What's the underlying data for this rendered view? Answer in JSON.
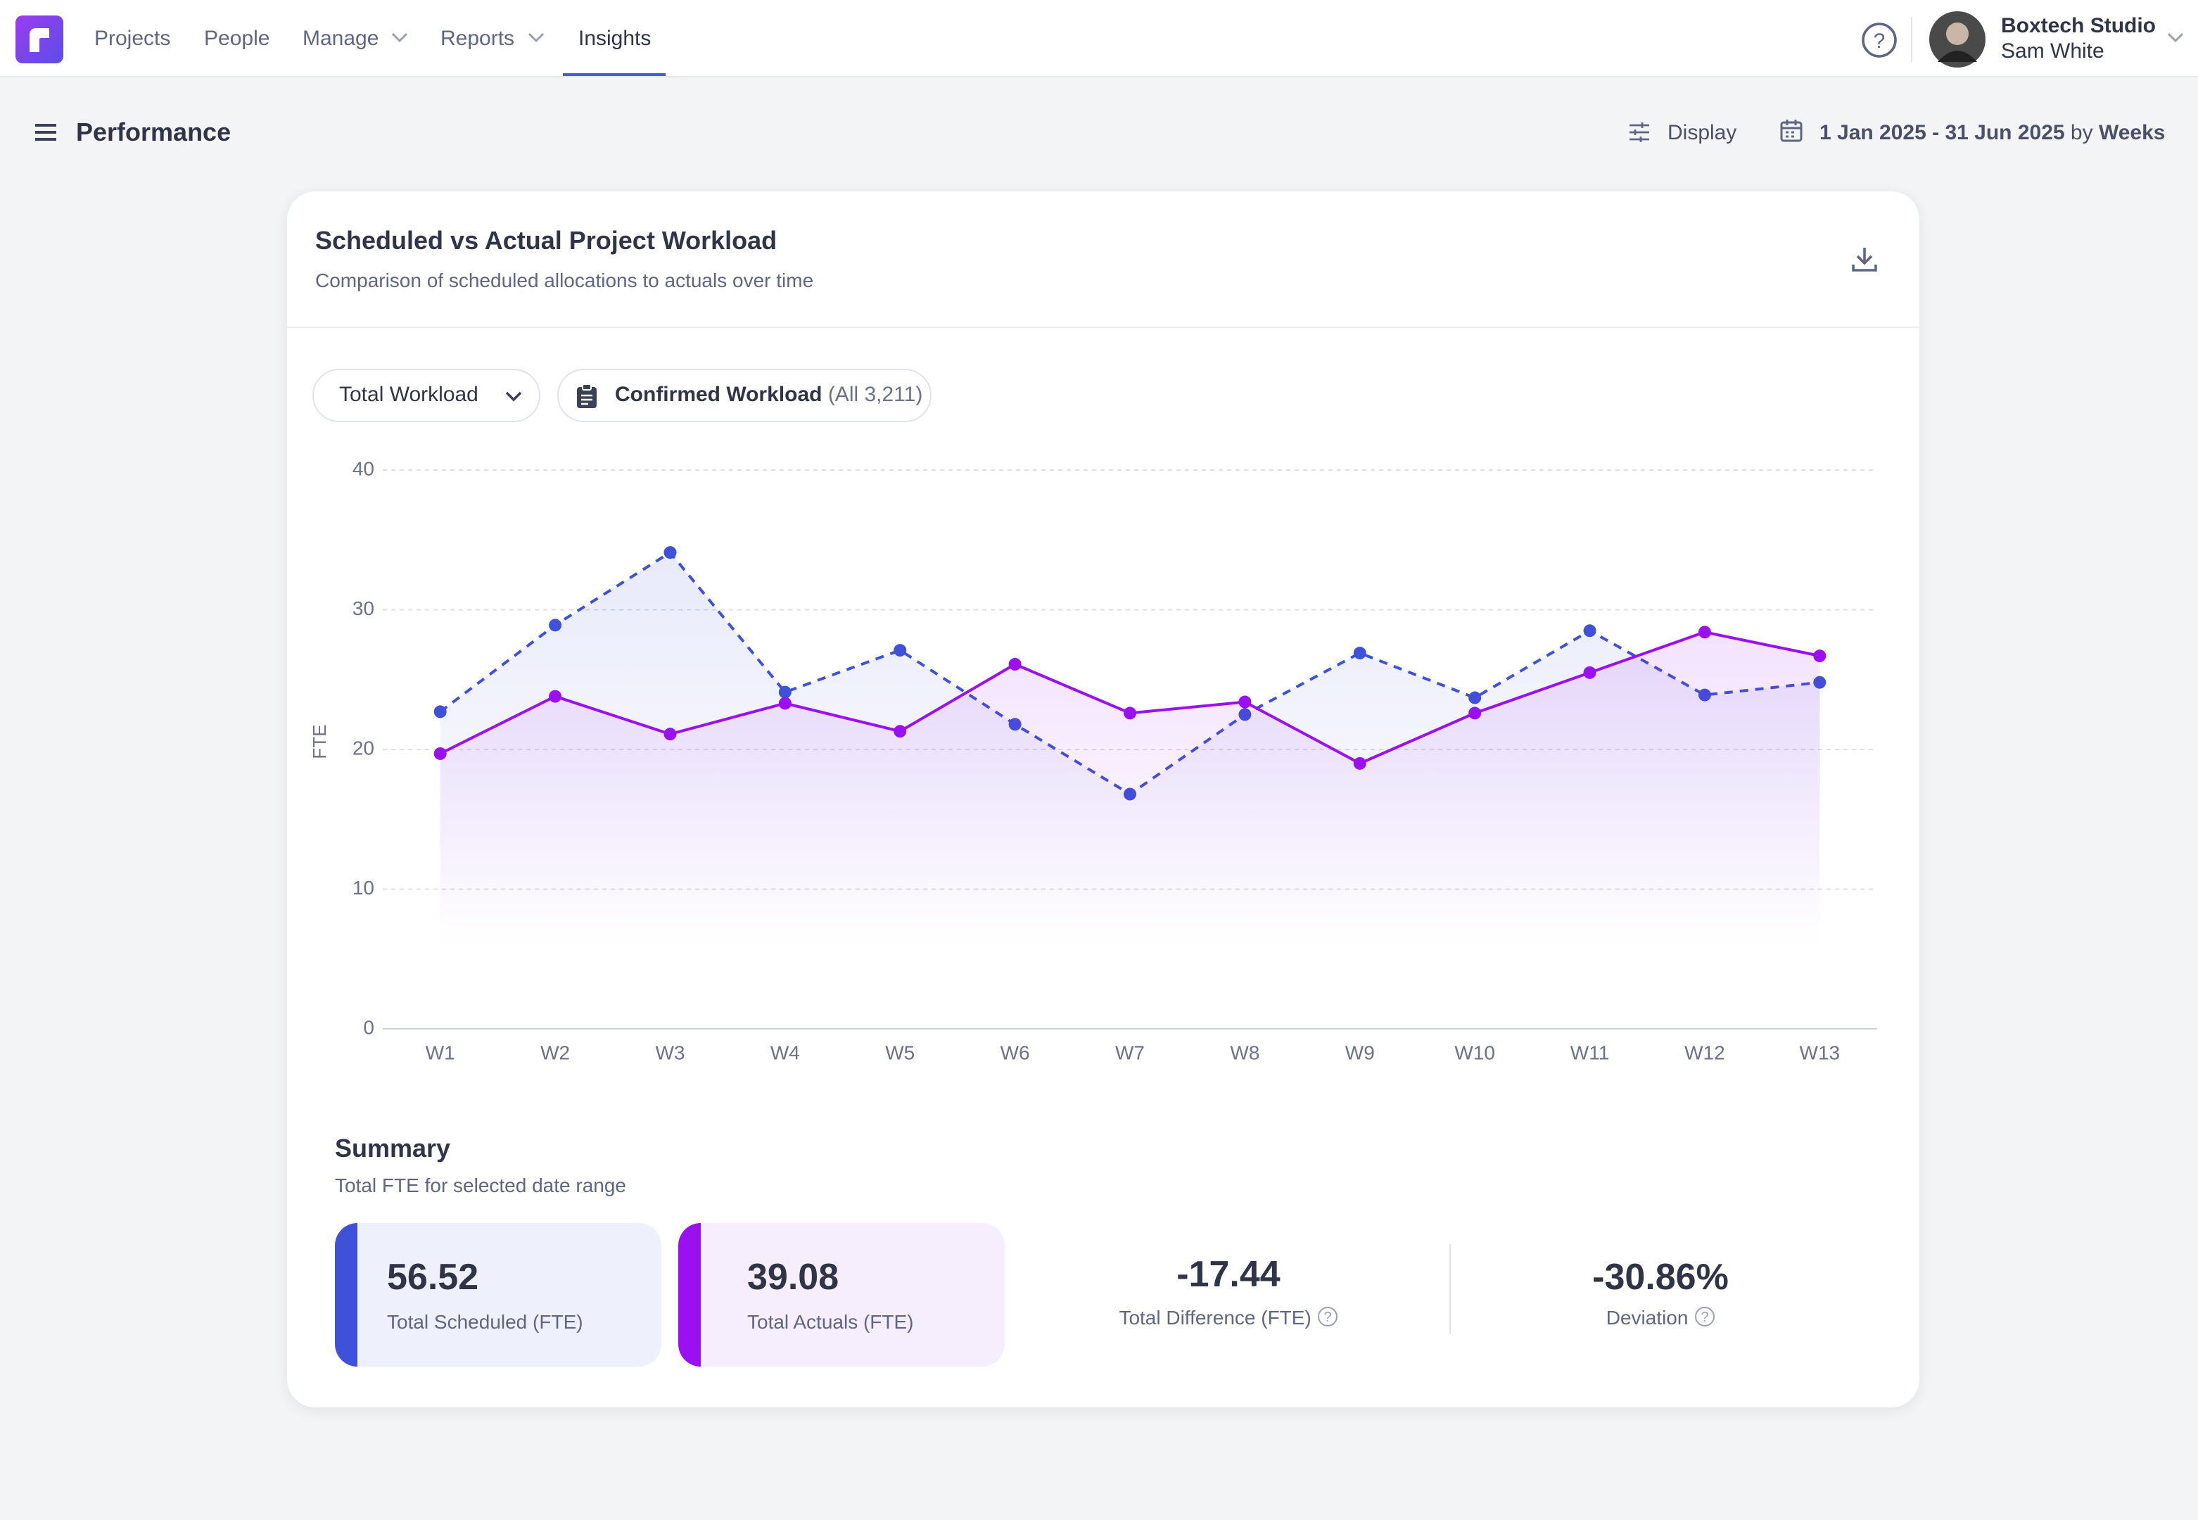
{
  "nav": {
    "items": [
      "Projects",
      "People",
      "Manage",
      "Reports",
      "Insights"
    ],
    "org": "Boxtech Studio",
    "user": "Sam White"
  },
  "header": {
    "title": "Performance",
    "display": "Display",
    "date_range": "1 Jan 2025 - 31 Jun 2025",
    "by": "by",
    "granularity": "Weeks"
  },
  "card": {
    "title": "Scheduled vs Actual Project Workload",
    "subtitle": "Comparison of scheduled allocations to actuals over time",
    "filter_1": "Total Workload",
    "filter_2": "Confirmed Workload",
    "filter_2_count": "(All 3,211)"
  },
  "chart_data": {
    "type": "line",
    "y_label": "FTE",
    "categories": [
      "W1",
      "W2",
      "W3",
      "W4",
      "W5",
      "W6",
      "W7",
      "W8",
      "W9",
      "W10",
      "W11",
      "W12",
      "W13"
    ],
    "series": [
      {
        "name": "Scheduled",
        "color": "#3f51d8",
        "style": "dashed",
        "values": [
          22.7,
          28.9,
          34.1,
          24.1,
          27.1,
          21.8,
          16.8,
          22.5,
          26.9,
          23.7,
          28.5,
          23.9,
          24.8
        ]
      },
      {
        "name": "Actuals",
        "color": "#9b10f0",
        "style": "solid",
        "values": [
          19.7,
          23.8,
          21.1,
          23.3,
          21.3,
          26.1,
          22.6,
          23.4,
          19.0,
          22.6,
          25.5,
          28.4,
          26.7
        ]
      }
    ],
    "ylim": [
      0,
      40
    ],
    "yticks": [
      0,
      10,
      20,
      30,
      40
    ],
    "grid": true
  },
  "summary": {
    "title": "Summary",
    "subtitle": "Total FTE for selected date range",
    "stats": [
      {
        "value": "56.52",
        "label": "Total Scheduled (FTE)"
      },
      {
        "value": "39.08",
        "label": "Total Actuals (FTE)"
      },
      {
        "value": "-17.44",
        "label": "Total Difference (FTE)"
      },
      {
        "value": "-30.86%",
        "label": "Deviation"
      }
    ]
  }
}
